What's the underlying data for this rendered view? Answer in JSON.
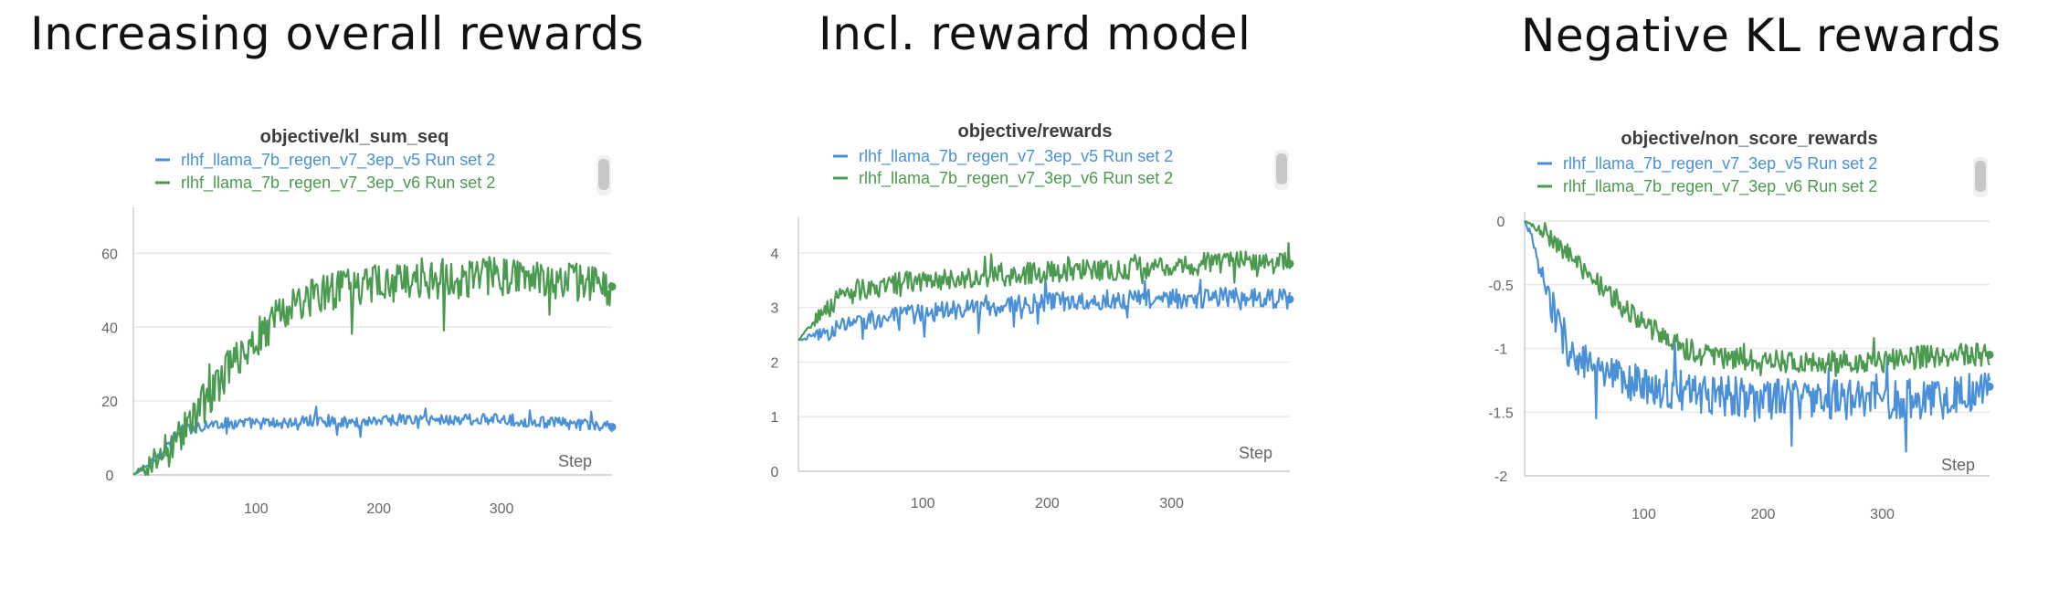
{
  "panel_titles": [
    "Increasing overall rewards",
    "Incl. reward model",
    "Negative KL rewards"
  ],
  "colors": {
    "v5": "#4a90d9",
    "v6": "#4a9a4f",
    "grid": "#e9e9e9",
    "axis": "#cfcfcf",
    "scrollbar": "#c8c8c8"
  },
  "chart_data": [
    {
      "type": "line",
      "title": "objective/kl_sum_seq",
      "xlabel": "Step",
      "ylabel": "",
      "xlim": [
        0,
        390
      ],
      "ylim": [
        0,
        70
      ],
      "xticks": [
        100,
        200,
        300
      ],
      "yticks": [
        0,
        20,
        40,
        60
      ],
      "ytick_labels": [
        "0",
        "20",
        "40",
        "60"
      ],
      "legend_position": "top",
      "grid": true,
      "series": [
        {
          "name": "rlhf_llama_7b_regen_v7_3ep_v5 Run set 2",
          "color": "#4a90d9",
          "x": [
            0,
            10,
            20,
            30,
            40,
            50,
            70,
            100,
            130,
            150,
            180,
            200,
            250,
            300,
            350,
            390
          ],
          "y": [
            0,
            2,
            5,
            9,
            12,
            13,
            14,
            14,
            14,
            15,
            14,
            15,
            15,
            15,
            14,
            13
          ]
        },
        {
          "name": "rlhf_llama_7b_regen_v7_3ep_v6 Run set 2",
          "color": "#4a9a4f",
          "x": [
            0,
            10,
            20,
            30,
            40,
            50,
            70,
            80,
            100,
            120,
            150,
            180,
            200,
            250,
            300,
            350,
            390
          ],
          "y": [
            0,
            2,
            4,
            8,
            12,
            16,
            25,
            30,
            37,
            44,
            49,
            51,
            52,
            53,
            54,
            53,
            51
          ]
        }
      ]
    },
    {
      "type": "line",
      "title": "objective/rewards",
      "xlabel": "Step",
      "ylabel": "",
      "xlim": [
        0,
        395
      ],
      "ylim": [
        0,
        4.5
      ],
      "xticks": [
        100,
        200,
        300
      ],
      "yticks": [
        0,
        1,
        2,
        3,
        4
      ],
      "ytick_labels": [
        "0",
        "1",
        "2",
        "3",
        "4"
      ],
      "legend_position": "top",
      "grid": true,
      "series": [
        {
          "name": "rlhf_llama_7b_regen_v7_3ep_v5 Run set 2",
          "color": "#4a90d9",
          "x": [
            0,
            10,
            30,
            50,
            100,
            150,
            200,
            250,
            300,
            350,
            395
          ],
          "y": [
            2.4,
            2.45,
            2.6,
            2.75,
            2.9,
            3.0,
            3.1,
            3.15,
            3.15,
            3.2,
            3.15
          ]
        },
        {
          "name": "rlhf_llama_7b_regen_v7_3ep_v6 Run set 2",
          "color": "#4a9a4f",
          "x": [
            0,
            10,
            30,
            50,
            100,
            150,
            200,
            250,
            300,
            350,
            395
          ],
          "y": [
            2.4,
            2.7,
            3.1,
            3.35,
            3.5,
            3.55,
            3.65,
            3.7,
            3.75,
            3.85,
            3.8
          ]
        }
      ]
    },
    {
      "type": "line",
      "title": "objective/non_score_rewards",
      "xlabel": "Step",
      "ylabel": "",
      "xlim": [
        0,
        390
      ],
      "ylim": [
        -2,
        0
      ],
      "xticks": [
        100,
        200,
        300
      ],
      "yticks": [
        -2,
        -1.5,
        -1,
        -0.5,
        0
      ],
      "ytick_labels": [
        "-2",
        "-1.5",
        "-1",
        "-0.5",
        "0"
      ],
      "legend_position": "top",
      "grid": true,
      "series": [
        {
          "name": "rlhf_llama_7b_regen_v7_3ep_v5 Run set 2",
          "color": "#4a90d9",
          "x": [
            0,
            5,
            10,
            20,
            30,
            40,
            60,
            100,
            150,
            200,
            250,
            300,
            350,
            390
          ],
          "y": [
            0,
            -0.1,
            -0.3,
            -0.6,
            -0.85,
            -1.05,
            -1.2,
            -1.3,
            -1.35,
            -1.4,
            -1.4,
            -1.4,
            -1.4,
            -1.3
          ]
        },
        {
          "name": "rlhf_llama_7b_regen_v7_3ep_v6 Run set 2",
          "color": "#4a9a4f",
          "x": [
            0,
            10,
            30,
            50,
            80,
            100,
            120,
            150,
            200,
            250,
            300,
            350,
            390
          ],
          "y": [
            0,
            -0.05,
            -0.2,
            -0.4,
            -0.65,
            -0.8,
            -0.95,
            -1.05,
            -1.1,
            -1.1,
            -1.1,
            -1.05,
            -1.05
          ]
        }
      ]
    }
  ]
}
